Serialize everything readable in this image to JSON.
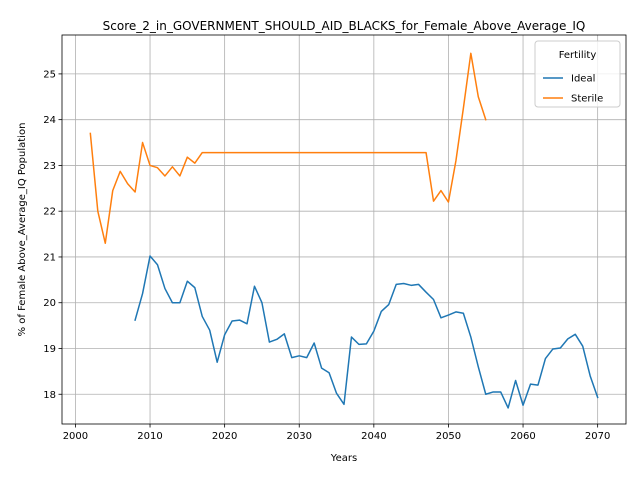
{
  "chart_data": {
    "type": "line",
    "title": "Score_2_in_GOVERNMENT_SHOULD_AID_BLACKS_for_Female_Above_Average_IQ",
    "xlabel": "Years",
    "ylabel": "% of Female Above_Average_IQ Population",
    "xlim": [
      1998.2,
      2073.8
    ],
    "ylim": [
      17.35,
      25.85
    ],
    "xticks": [
      2000,
      2010,
      2020,
      2030,
      2040,
      2050,
      2060,
      2070
    ],
    "yticks": [
      18,
      19,
      20,
      21,
      22,
      23,
      24,
      25
    ],
    "grid": true,
    "legend": {
      "title": "Fertility",
      "position": "top-right"
    },
    "series": [
      {
        "name": "Ideal",
        "color": "#1f77b4",
        "x": [
          2008,
          2009,
          2010,
          2011,
          2012,
          2013,
          2014,
          2015,
          2016,
          2017,
          2018,
          2019,
          2020,
          2021,
          2022,
          2023,
          2024,
          2025,
          2026,
          2027,
          2028,
          2029,
          2030,
          2031,
          2032,
          2033,
          2034,
          2035,
          2036,
          2037,
          2038,
          2039,
          2040,
          2041,
          2042,
          2043,
          2044,
          2045,
          2046,
          2047,
          2048,
          2049,
          2050,
          2051,
          2052,
          2053,
          2054,
          2055,
          2056,
          2057,
          2058,
          2059,
          2060,
          2061,
          2062,
          2063,
          2064,
          2065,
          2066,
          2067,
          2068,
          2069,
          2070
        ],
        "values": [
          19.62,
          20.2,
          21.02,
          20.83,
          20.31,
          20.0,
          20.0,
          20.47,
          20.33,
          19.7,
          19.4,
          18.7,
          19.3,
          19.6,
          19.62,
          19.54,
          20.36,
          20.0,
          19.14,
          19.2,
          19.32,
          18.8,
          18.84,
          18.8,
          19.12,
          18.57,
          18.47,
          18.02,
          17.78,
          19.25,
          19.09,
          19.1,
          19.38,
          19.81,
          19.96,
          20.4,
          20.42,
          20.38,
          20.4,
          20.23,
          20.07,
          19.67,
          19.73,
          19.8,
          19.77,
          19.25,
          18.6,
          18.0,
          18.05,
          18.05,
          17.7,
          18.3,
          17.76,
          18.22,
          18.2,
          18.78,
          18.99,
          19.01,
          19.21,
          19.31,
          19.05,
          18.4,
          17.93
        ]
      },
      {
        "name": "Sterile",
        "color": "#ff7f0e",
        "x": [
          2002,
          2003,
          2004,
          2005,
          2006,
          2007,
          2008,
          2009,
          2010,
          2011,
          2012,
          2013,
          2014,
          2015,
          2016,
          2017,
          2018,
          2019,
          2020,
          2021,
          2022,
          2023,
          2024,
          2025,
          2026,
          2027,
          2028,
          2029,
          2030,
          2031,
          2032,
          2033,
          2034,
          2035,
          2036,
          2037,
          2038,
          2039,
          2040,
          2041,
          2042,
          2043,
          2044,
          2045,
          2046,
          2047,
          2048,
          2049,
          2050,
          2051,
          2052,
          2053,
          2054,
          2055
        ],
        "values": [
          23.7,
          22.0,
          21.3,
          22.45,
          22.87,
          22.6,
          22.42,
          23.5,
          23.0,
          22.95,
          22.77,
          22.97,
          22.77,
          23.18,
          23.05,
          23.28,
          23.28,
          23.28,
          23.28,
          23.28,
          23.28,
          23.28,
          23.28,
          23.28,
          23.28,
          23.28,
          23.28,
          23.28,
          23.28,
          23.28,
          23.28,
          23.28,
          23.28,
          23.28,
          23.28,
          23.28,
          23.28,
          23.28,
          23.28,
          23.28,
          23.28,
          23.28,
          23.28,
          23.28,
          23.28,
          23.28,
          22.22,
          22.45,
          22.2,
          23.1,
          24.25,
          25.45,
          24.5,
          24.0
        ]
      }
    ]
  }
}
